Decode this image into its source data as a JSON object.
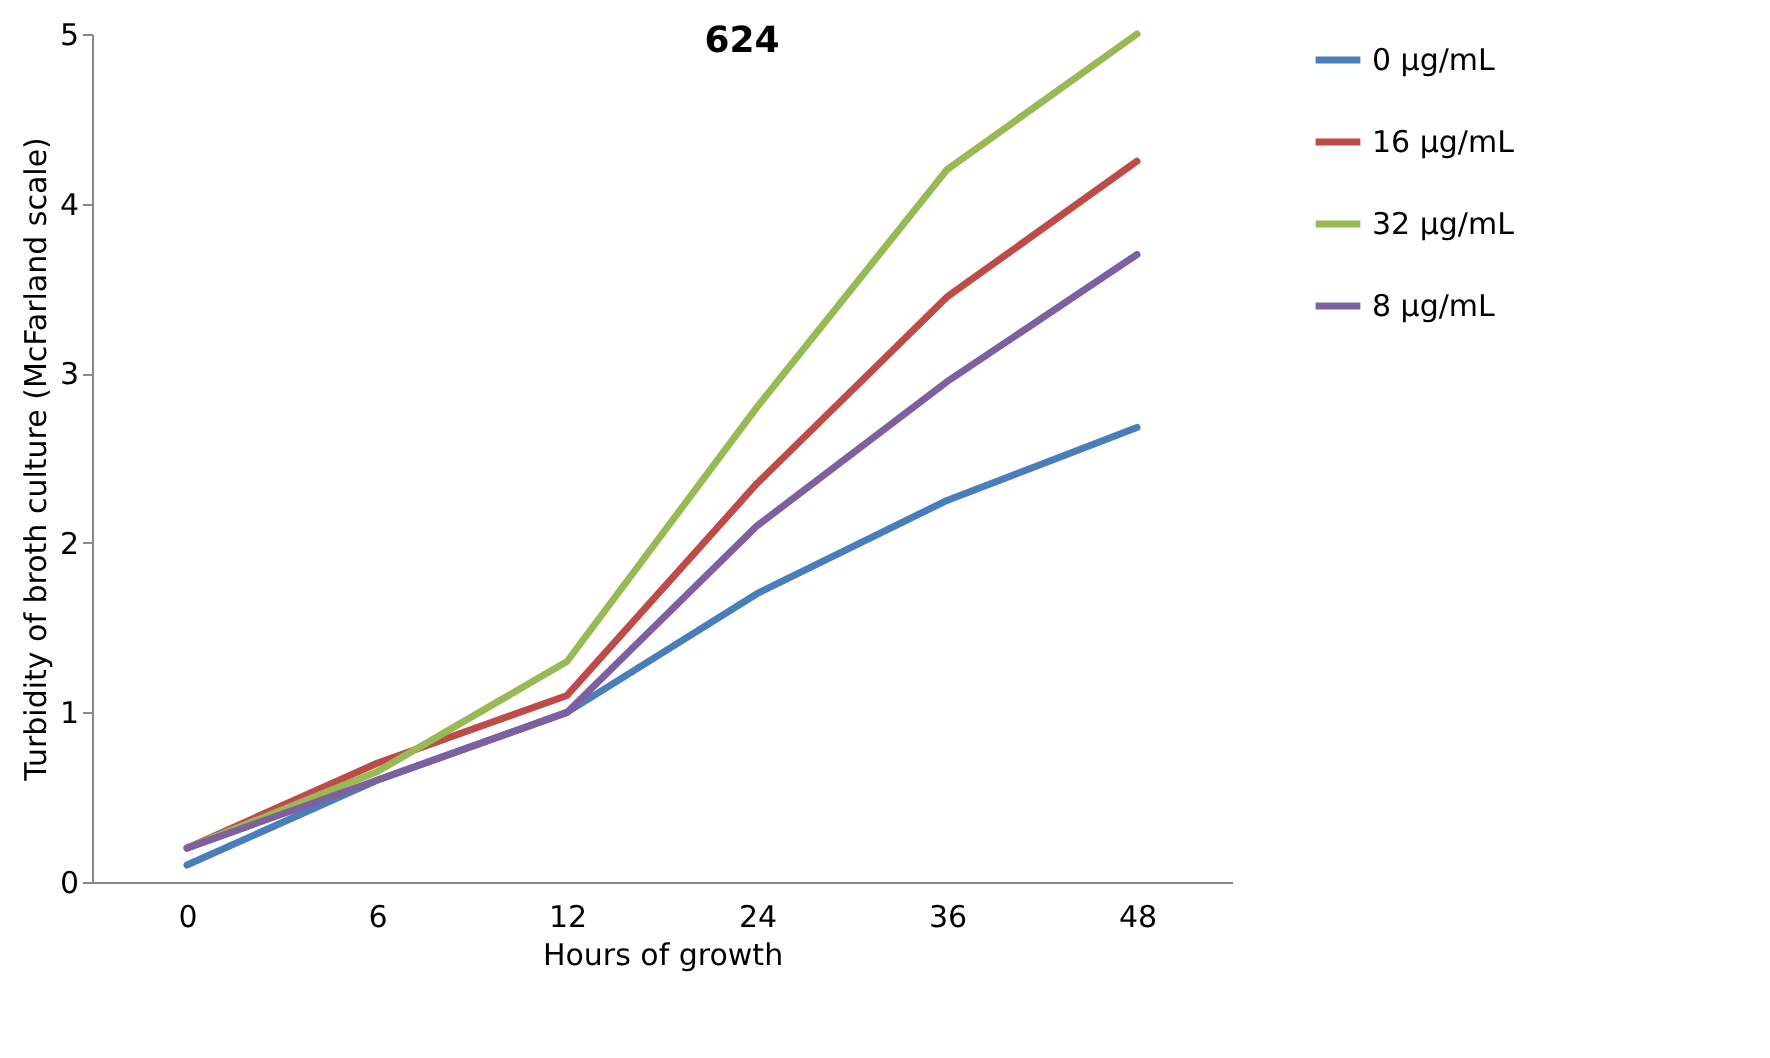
{
  "chart_data": {
    "type": "line",
    "title": "624",
    "xlabel": "Hours of growth",
    "ylabel": "Turbidity of broth culture (McFarland scale)",
    "categories": [
      "0",
      "6",
      "12",
      "24",
      "36",
      "48"
    ],
    "series": [
      {
        "name": "0 μg/mL",
        "color": "#4a7ebb",
        "values": [
          0.1,
          0.6,
          1.0,
          1.7,
          2.25,
          2.68
        ]
      },
      {
        "name": "16 μg/mL",
        "color": "#be4b48",
        "values": [
          0.2,
          0.7,
          1.1,
          2.35,
          3.45,
          4.25
        ]
      },
      {
        "name": "32 μg/mL",
        "color": "#98b954",
        "values": [
          0.2,
          0.65,
          1.3,
          2.8,
          4.2,
          5.0
        ]
      },
      {
        "name": "8 μg/mL",
        "color": "#7d60a0",
        "values": [
          0.2,
          0.6,
          1.0,
          2.1,
          2.95,
          3.7
        ]
      }
    ],
    "ylim": [
      0,
      5
    ],
    "yticks": [
      0,
      1,
      2,
      3,
      4,
      5
    ],
    "grid": false,
    "legend": "right",
    "marker": "none",
    "line_style": "solid"
  }
}
